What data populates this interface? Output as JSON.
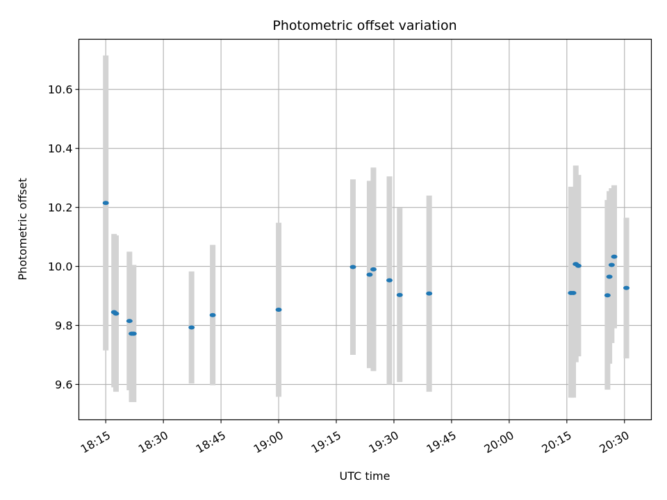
{
  "chart_data": {
    "type": "scatter",
    "title": "Photometric offset variation",
    "xlabel": "UTC time",
    "ylabel": "Photometric offset",
    "xlim": [
      "18:08",
      "20:37"
    ],
    "ylim": [
      9.48,
      10.77
    ],
    "grid": true,
    "x_ticks": [
      "18:15",
      "18:30",
      "18:45",
      "19:00",
      "19:15",
      "19:30",
      "19:45",
      "20:00",
      "20:15",
      "20:30"
    ],
    "y_ticks": [
      "9.6",
      "9.8",
      "10.0",
      "10.2",
      "10.4",
      "10.6"
    ],
    "colors": {
      "point": "#1f77b4",
      "error_bar": "#d3d3d3",
      "grid": "#b0b0b0"
    },
    "series": [
      {
        "points": [
          {
            "t": "18:15:00",
            "y": 10.215,
            "ylo": 9.715,
            "yhi": 10.715
          },
          {
            "t": "18:17:10",
            "y": 9.845,
            "ylo": 9.59,
            "yhi": 10.11
          },
          {
            "t": "18:17:40",
            "y": 9.84,
            "ylo": 9.575,
            "yhi": 10.105
          },
          {
            "t": "18:21:10",
            "y": 9.815,
            "ylo": 9.58,
            "yhi": 10.05
          },
          {
            "t": "18:21:45",
            "y": 9.772,
            "ylo": 9.54,
            "yhi": 10.005
          },
          {
            "t": "18:22:15",
            "y": 9.772,
            "ylo": 9.54,
            "yhi": 10.005
          },
          {
            "t": "18:37:20",
            "y": 9.793,
            "ylo": 9.603,
            "yhi": 9.983
          },
          {
            "t": "18:42:50",
            "y": 9.835,
            "ylo": 9.597,
            "yhi": 10.073
          },
          {
            "t": "19:00:00",
            "y": 9.853,
            "ylo": 9.558,
            "yhi": 10.148
          },
          {
            "t": "19:19:20",
            "y": 9.998,
            "ylo": 9.7,
            "yhi": 10.295
          },
          {
            "t": "19:23:40",
            "y": 9.972,
            "ylo": 9.655,
            "yhi": 10.29
          },
          {
            "t": "19:24:40",
            "y": 9.99,
            "ylo": 9.645,
            "yhi": 10.335
          },
          {
            "t": "19:28:50",
            "y": 9.953,
            "ylo": 9.6,
            "yhi": 10.305
          },
          {
            "t": "19:31:30",
            "y": 9.903,
            "ylo": 9.608,
            "yhi": 10.198
          },
          {
            "t": "19:39:10",
            "y": 9.908,
            "ylo": 9.575,
            "yhi": 10.24
          },
          {
            "t": "20:16:05",
            "y": 9.91,
            "ylo": 9.555,
            "yhi": 10.27
          },
          {
            "t": "20:16:40",
            "y": 9.91,
            "ylo": 9.555,
            "yhi": 10.265
          },
          {
            "t": "20:17:20",
            "y": 10.008,
            "ylo": 9.675,
            "yhi": 10.342
          },
          {
            "t": "20:18:00",
            "y": 10.002,
            "ylo": 9.695,
            "yhi": 10.31
          },
          {
            "t": "20:25:35",
            "y": 9.902,
            "ylo": 9.582,
            "yhi": 10.225
          },
          {
            "t": "20:26:05",
            "y": 9.965,
            "ylo": 9.67,
            "yhi": 10.255
          },
          {
            "t": "20:26:40",
            "y": 10.005,
            "ylo": 9.74,
            "yhi": 10.265
          },
          {
            "t": "20:27:20",
            "y": 10.033,
            "ylo": 9.79,
            "yhi": 10.275
          },
          {
            "t": "20:30:30",
            "y": 9.927,
            "ylo": 9.688,
            "yhi": 10.165
          }
        ]
      }
    ]
  }
}
